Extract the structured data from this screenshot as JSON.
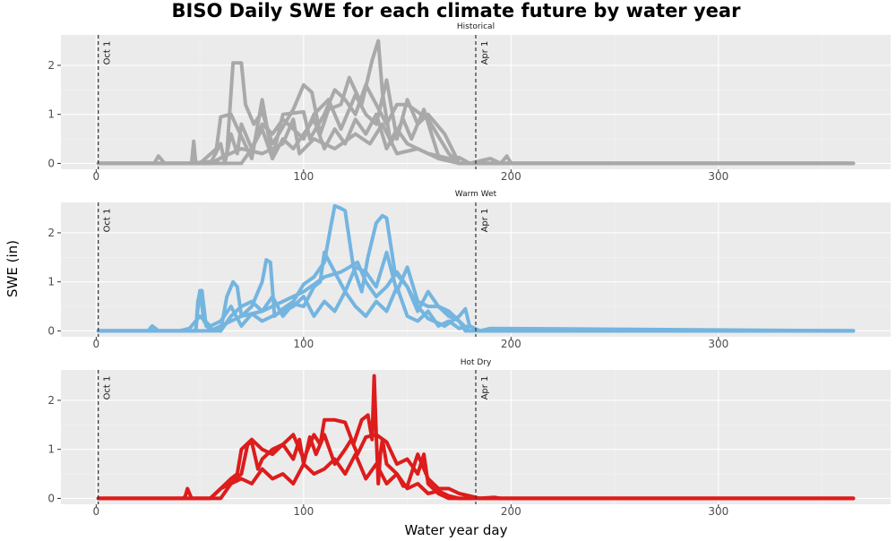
{
  "chart_data": {
    "type": "line",
    "title": "BISO Daily SWE for each climate future by water year",
    "xlabel": "Water year day",
    "ylabel": "SWE (in)",
    "xlim": [
      -17,
      383
    ],
    "ylim": [
      -0.12,
      2.62
    ],
    "x_ticks": [
      0,
      100,
      200,
      300
    ],
    "y_ticks": [
      0,
      1,
      2
    ],
    "grid": true,
    "legend": "none",
    "vlines": [
      {
        "x": 1,
        "label": "Oct 1"
      },
      {
        "x": 183,
        "label": "Apr 1"
      }
    ],
    "panels": [
      {
        "strip": "Historical",
        "color": "#a9a9a9",
        "series": [
          {
            "x": [
              1,
              30,
              45,
              58,
              63,
              66,
              70,
              72,
              76,
              80,
              85,
              88,
              95,
              100,
              104,
              108,
              112,
              118,
              122,
              128,
              133,
              136,
              138,
              142,
              148,
              152,
              158,
              165,
              175,
              185,
              200,
              365
            ],
            "y": [
              0,
              0,
              0,
              0.05,
              0.2,
              2.05,
              2.05,
              1.2,
              0.8,
              1.05,
              0.4,
              0.6,
              1.1,
              1.6,
              1.45,
              0.6,
              1.1,
              1.2,
              1.75,
              1.2,
              2.1,
              2.5,
              1.45,
              0.4,
              0.9,
              0.5,
              1.1,
              0.15,
              0,
              0,
              0,
              0
            ]
          },
          {
            "x": [
              1,
              50,
              58,
              60,
              65,
              75,
              80,
              85,
              90,
              100,
              103,
              110,
              115,
              120,
              125,
              130,
              135,
              140,
              145,
              150,
              160,
              170,
              175,
              200,
              365
            ],
            "y": [
              0,
              0,
              0.3,
              0.95,
              1.0,
              0.1,
              1.3,
              0.1,
              1.0,
              1.05,
              0.5,
              1.0,
              1.5,
              1.3,
              1.0,
              1.6,
              1.2,
              0.8,
              1.2,
              1.2,
              0.9,
              0.2,
              0,
              0,
              0
            ]
          },
          {
            "x": [
              1,
              70,
              75,
              80,
              85,
              90,
              95,
              100,
              105,
              112,
              118,
              125,
              130,
              135,
              140,
              145,
              150,
              155,
              160,
              168,
              175,
              200,
              365
            ],
            "y": [
              0,
              0,
              0.3,
              0.8,
              0.6,
              0.9,
              0.7,
              0.5,
              1.0,
              1.3,
              0.7,
              1.4,
              1.0,
              0.8,
              1.7,
              0.5,
              1.3,
              0.8,
              1.0,
              0.6,
              0,
              0,
              0
            ]
          },
          {
            "x": [
              1,
              20,
              28,
              30,
              33,
              40,
              46,
              47,
              48,
              55,
              60,
              62,
              65,
              68,
              70,
              75,
              80,
              85,
              90,
              95,
              100,
              105,
              110,
              115,
              120,
              125,
              130,
              135,
              140,
              145,
              150,
              155,
              160,
              170,
              175,
              180,
              190,
              195,
              198,
              200,
              365
            ],
            "y": [
              0,
              0,
              0,
              0.15,
              0,
              0,
              0,
              0.45,
              0,
              0,
              0.4,
              0,
              0.6,
              0.2,
              0.8,
              0.3,
              0.7,
              0.1,
              0.5,
              0.3,
              0.6,
              0.9,
              0.3,
              0.7,
              0.4,
              0.9,
              0.6,
              1.0,
              0.3,
              0.7,
              0.4,
              0.3,
              0.2,
              0.1,
              0.12,
              0,
              0.1,
              0,
              0.15,
              0,
              0
            ]
          },
          {
            "x": [
              1,
              55,
              62,
              70,
              80,
              90,
              95,
              98,
              105,
              115,
              125,
              132,
              138,
              145,
              155,
              165,
              175,
              183,
              365
            ],
            "y": [
              0,
              0,
              0.15,
              0.3,
              0.2,
              0.4,
              0.9,
              0.2,
              0.5,
              0.3,
              0.6,
              0.4,
              0.8,
              0.2,
              0.3,
              0.1,
              0,
              0,
              0
            ]
          }
        ]
      },
      {
        "strip": "Warm Wet",
        "color": "#74b5e0",
        "series": [
          {
            "x": [
              1,
              45,
              48,
              49,
              50,
              51,
              53,
              55,
              60,
              63,
              66,
              68,
              70,
              75,
              80,
              82,
              84,
              86,
              90,
              95,
              100,
              105,
              110,
              113,
              115,
              118,
              120,
              124,
              128,
              131,
              135,
              138,
              140,
              144,
              150,
              155,
              160,
              168,
              175,
              178,
              180,
              185,
              190,
              365
            ],
            "y": [
              0,
              0,
              0,
              0.45,
              0.82,
              0.82,
              0.1,
              0.05,
              0,
              0.7,
              1.0,
              0.9,
              0.3,
              0.5,
              1.0,
              1.45,
              1.4,
              0.3,
              0.45,
              0.6,
              0.95,
              1.1,
              1.4,
              2.1,
              2.55,
              2.5,
              2.45,
              1.3,
              0.8,
              1.5,
              2.2,
              2.35,
              2.3,
              1.2,
              0.9,
              0.5,
              0.25,
              0.1,
              0.3,
              0.45,
              0.1,
              0,
              0,
              0
            ]
          },
          {
            "x": [
              1,
              60,
              65,
              70,
              75,
              80,
              85,
              90,
              95,
              100,
              105,
              108,
              110,
              115,
              120,
              125,
              130,
              135,
              140,
              145,
              150,
              155,
              160,
              165,
              170,
              175,
              180,
              365
            ],
            "y": [
              0,
              0,
              0.3,
              0.5,
              0.6,
              0.4,
              0.7,
              0.3,
              0.55,
              0.5,
              0.9,
              1.0,
              1.6,
              1.2,
              0.8,
              1.3,
              1.2,
              0.9,
              1.6,
              0.8,
              1.3,
              0.6,
              0.5,
              0.5,
              0.4,
              0.2,
              0,
              0
            ]
          },
          {
            "x": [
              1,
              48,
              49,
              50,
              52,
              55,
              60,
              70,
              80,
              90,
              100,
              110,
              118,
              122,
              126,
              130,
              135,
              140,
              145,
              150,
              155,
              160,
              165,
              170,
              175,
              178,
              365
            ],
            "y": [
              0,
              0,
              0.6,
              0.8,
              0.2,
              0,
              0.1,
              0.3,
              0.4,
              0.6,
              0.8,
              1.1,
              1.2,
              1.3,
              1.4,
              1.0,
              0.7,
              0.9,
              1.2,
              0.9,
              0.4,
              0.8,
              0.5,
              0.3,
              0.2,
              0,
              0
            ]
          },
          {
            "x": [
              1,
              25,
              27,
              30,
              40,
              45,
              50,
              55,
              60,
              65,
              70,
              75,
              80,
              85,
              90,
              95,
              100,
              105,
              110,
              115,
              120,
              125,
              130,
              135,
              140,
              145,
              150,
              155,
              160,
              165,
              170,
              175,
              180,
              185,
              190,
              365
            ],
            "y": [
              0,
              0,
              0.1,
              0,
              0,
              0.05,
              0.3,
              0.1,
              0.2,
              0.5,
              0.1,
              0.35,
              0.2,
              0.3,
              0.4,
              0.5,
              0.7,
              0.3,
              0.6,
              0.4,
              0.8,
              0.5,
              0.3,
              0.6,
              0.4,
              0.9,
              0.3,
              0.2,
              0.4,
              0.1,
              0.2,
              0.05,
              0.1,
              0,
              0.05,
              0
            ]
          }
        ]
      },
      {
        "strip": "Hot Dry",
        "color": "#dd1c1c",
        "series": [
          {
            "x": [
              1,
              42,
              43,
              44,
              46,
              55,
              60,
              65,
              68,
              70,
              75,
              80,
              85,
              90,
              95,
              100,
              105,
              108,
              110,
              115,
              120,
              124,
              128,
              131,
              133,
              134,
              135,
              136,
              137,
              138,
              140,
              145,
              148,
              150,
              155,
              160,
              165,
              170,
              175,
              180,
              185,
              192,
              195,
              365
            ],
            "y": [
              0,
              0,
              0.05,
              0.2,
              0,
              0,
              0.2,
              0.4,
              0.5,
              1.0,
              1.2,
              1.0,
              0.9,
              1.1,
              1.3,
              0.8,
              1.3,
              1.1,
              1.6,
              1.6,
              1.55,
              1.1,
              1.6,
              1.7,
              1.2,
              2.5,
              1.3,
              0.3,
              0.9,
              1.2,
              0.7,
              0.5,
              0.25,
              0.25,
              0.9,
              0.4,
              0.2,
              0.2,
              0.1,
              0.05,
              0,
              0.02,
              0,
              0
            ]
          },
          {
            "x": [
              1,
              60,
              65,
              70,
              73,
              75,
              78,
              80,
              85,
              90,
              95,
              98,
              100,
              103,
              106,
              110,
              115,
              120,
              123,
              126,
              130,
              135,
              140,
              145,
              150,
              155,
              158,
              160,
              165,
              170,
              365
            ],
            "y": [
              0,
              0,
              0.3,
              0.5,
              1.1,
              1.15,
              0.6,
              0.8,
              1.0,
              1.1,
              0.8,
              1.2,
              0.7,
              1.25,
              0.9,
              1.3,
              0.7,
              1.0,
              1.2,
              0.9,
              1.25,
              1.3,
              1.15,
              0.7,
              0.8,
              0.5,
              0.9,
              0.3,
              0.1,
              0,
              0
            ]
          },
          {
            "x": [
              1,
              55,
              60,
              65,
              70,
              75,
              80,
              85,
              90,
              95,
              100,
              105,
              110,
              115,
              120,
              125,
              130,
              135,
              140,
              145,
              150,
              155,
              160,
              165,
              170,
              175,
              365
            ],
            "y": [
              0,
              0,
              0.2,
              0.3,
              0.4,
              0.3,
              0.6,
              0.4,
              0.5,
              0.3,
              0.7,
              0.5,
              0.6,
              0.8,
              0.5,
              0.9,
              0.4,
              0.7,
              0.3,
              0.5,
              0.2,
              0.3,
              0.1,
              0.15,
              0.05,
              0,
              0
            ]
          }
        ]
      }
    ]
  }
}
